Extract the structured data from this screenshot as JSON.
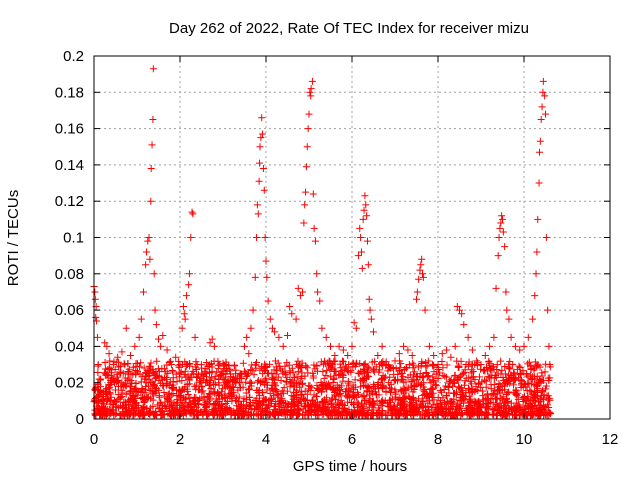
{
  "chart_data": {
    "type": "scatter",
    "title": "Day 262 of 2022, Rate Of TEC Index for receiver mizu",
    "xlabel": "GPS time / hours",
    "ylabel": "ROTI / TECUs",
    "xlim": [
      0,
      12
    ],
    "ylim": [
      0,
      0.2
    ],
    "xticks": [
      "0",
      "2",
      "4",
      "6",
      "8",
      "10",
      "12"
    ],
    "yticks": [
      "0",
      "0.02",
      "0.04",
      "0.06",
      "0.08",
      "0.1",
      "0.12",
      "0.14",
      "0.16",
      "0.18",
      "0.2"
    ],
    "grid": true,
    "marker": "+",
    "color": "#ff0000",
    "series": [
      {
        "points": [
          [
            0.0,
            0.073
          ],
          [
            0.02,
            0.07
          ],
          [
            0.03,
            0.066
          ],
          [
            0.05,
            0.062
          ],
          [
            0.04,
            0.056
          ],
          [
            0.06,
            0.054
          ],
          [
            0.08,
            0.045
          ],
          [
            0.1,
            0.03
          ],
          [
            0.12,
            0.022
          ],
          [
            0.15,
            0.018
          ],
          [
            0.25,
            0.042
          ],
          [
            0.3,
            0.04
          ],
          [
            0.35,
            0.036
          ],
          [
            0.45,
            0.03
          ],
          [
            0.55,
            0.034
          ],
          [
            0.65,
            0.037
          ],
          [
            0.75,
            0.05
          ],
          [
            0.85,
            0.035
          ],
          [
            0.95,
            0.04
          ],
          [
            1.05,
            0.045
          ],
          [
            1.1,
            0.055
          ],
          [
            1.15,
            0.07
          ],
          [
            1.2,
            0.085
          ],
          [
            1.22,
            0.092
          ],
          [
            1.25,
            0.098
          ],
          [
            1.28,
            0.1
          ],
          [
            1.3,
            0.088
          ],
          [
            1.32,
            0.12
          ],
          [
            1.33,
            0.138
          ],
          [
            1.35,
            0.151
          ],
          [
            1.37,
            0.165
          ],
          [
            1.38,
            0.193
          ],
          [
            1.4,
            0.08
          ],
          [
            1.42,
            0.06
          ],
          [
            1.45,
            0.052
          ],
          [
            1.5,
            0.044
          ],
          [
            1.55,
            0.04
          ],
          [
            1.6,
            0.046
          ],
          [
            1.7,
            0.038
          ],
          [
            1.8,
            0.03
          ],
          [
            1.9,
            0.034
          ],
          [
            2.0,
            0.03
          ],
          [
            2.05,
            0.05
          ],
          [
            2.08,
            0.062
          ],
          [
            2.1,
            0.058
          ],
          [
            2.12,
            0.055
          ],
          [
            2.15,
            0.068
          ],
          [
            2.2,
            0.074
          ],
          [
            2.22,
            0.08
          ],
          [
            2.25,
            0.1
          ],
          [
            2.28,
            0.114
          ],
          [
            2.3,
            0.113
          ],
          [
            2.35,
            0.045
          ],
          [
            2.4,
            0.03
          ],
          [
            2.5,
            0.028
          ],
          [
            2.6,
            0.025
          ],
          [
            2.7,
            0.042
          ],
          [
            2.75,
            0.044
          ],
          [
            2.8,
            0.04
          ],
          [
            2.9,
            0.02
          ],
          [
            3.0,
            0.022
          ],
          [
            3.1,
            0.018
          ],
          [
            3.2,
            0.016
          ],
          [
            3.3,
            0.02
          ],
          [
            3.4,
            0.025
          ],
          [
            3.5,
            0.04
          ],
          [
            3.55,
            0.045
          ],
          [
            3.6,
            0.036
          ],
          [
            3.65,
            0.05
          ],
          [
            3.7,
            0.06
          ],
          [
            3.75,
            0.078
          ],
          [
            3.78,
            0.1
          ],
          [
            3.8,
            0.118
          ],
          [
            3.82,
            0.113
          ],
          [
            3.84,
            0.131
          ],
          [
            3.85,
            0.141
          ],
          [
            3.86,
            0.15
          ],
          [
            3.88,
            0.155
          ],
          [
            3.9,
            0.166
          ],
          [
            3.92,
            0.157
          ],
          [
            3.94,
            0.138
          ],
          [
            3.96,
            0.126
          ],
          [
            3.98,
            0.1
          ],
          [
            4.0,
            0.087
          ],
          [
            4.02,
            0.078
          ],
          [
            4.05,
            0.065
          ],
          [
            4.1,
            0.055
          ],
          [
            4.15,
            0.05
          ],
          [
            4.2,
            0.048
          ],
          [
            4.3,
            0.045
          ],
          [
            4.4,
            0.04
          ],
          [
            4.5,
            0.046
          ],
          [
            4.55,
            0.062
          ],
          [
            4.6,
            0.058
          ],
          [
            4.7,
            0.055
          ],
          [
            4.75,
            0.072
          ],
          [
            4.8,
            0.068
          ],
          [
            4.85,
            0.07
          ],
          [
            4.88,
            0.108
          ],
          [
            4.9,
            0.118
          ],
          [
            4.92,
            0.125
          ],
          [
            4.94,
            0.139
          ],
          [
            4.96,
            0.15
          ],
          [
            4.98,
            0.16
          ],
          [
            5.0,
            0.168
          ],
          [
            5.02,
            0.18
          ],
          [
            5.04,
            0.178
          ],
          [
            5.05,
            0.182
          ],
          [
            5.08,
            0.186
          ],
          [
            5.1,
            0.124
          ],
          [
            5.12,
            0.105
          ],
          [
            5.15,
            0.098
          ],
          [
            5.18,
            0.08
          ],
          [
            5.2,
            0.07
          ],
          [
            5.25,
            0.065
          ],
          [
            5.3,
            0.05
          ],
          [
            5.4,
            0.045
          ],
          [
            5.5,
            0.04
          ],
          [
            5.6,
            0.035
          ],
          [
            5.7,
            0.04
          ],
          [
            5.8,
            0.038
          ],
          [
            5.9,
            0.035
          ],
          [
            6.0,
            0.04
          ],
          [
            6.05,
            0.053
          ],
          [
            6.1,
            0.05
          ],
          [
            6.15,
            0.09
          ],
          [
            6.18,
            0.105
          ],
          [
            6.2,
            0.1
          ],
          [
            6.22,
            0.092
          ],
          [
            6.24,
            0.083
          ],
          [
            6.26,
            0.11
          ],
          [
            6.28,
            0.115
          ],
          [
            6.3,
            0.123
          ],
          [
            6.32,
            0.118
          ],
          [
            6.34,
            0.112
          ],
          [
            6.36,
            0.098
          ],
          [
            6.38,
            0.085
          ],
          [
            6.4,
            0.066
          ],
          [
            6.42,
            0.06
          ],
          [
            6.45,
            0.055
          ],
          [
            6.5,
            0.048
          ],
          [
            6.6,
            0.035
          ],
          [
            6.7,
            0.04
          ],
          [
            6.8,
            0.03
          ],
          [
            6.9,
            0.028
          ],
          [
            7.0,
            0.032
          ],
          [
            7.1,
            0.036
          ],
          [
            7.2,
            0.04
          ],
          [
            7.3,
            0.038
          ],
          [
            7.4,
            0.035
          ],
          [
            7.5,
            0.066
          ],
          [
            7.52,
            0.07
          ],
          [
            7.55,
            0.077
          ],
          [
            7.58,
            0.082
          ],
          [
            7.6,
            0.085
          ],
          [
            7.62,
            0.088
          ],
          [
            7.64,
            0.08
          ],
          [
            7.66,
            0.078
          ],
          [
            7.7,
            0.06
          ],
          [
            7.8,
            0.04
          ],
          [
            7.9,
            0.035
          ],
          [
            8.0,
            0.03
          ],
          [
            8.1,
            0.036
          ],
          [
            8.2,
            0.038
          ],
          [
            8.3,
            0.034
          ],
          [
            8.4,
            0.04
          ],
          [
            8.45,
            0.062
          ],
          [
            8.5,
            0.06
          ],
          [
            8.55,
            0.058
          ],
          [
            8.6,
            0.052
          ],
          [
            8.7,
            0.045
          ],
          [
            8.8,
            0.038
          ],
          [
            8.9,
            0.032
          ],
          [
            9.0,
            0.03
          ],
          [
            9.1,
            0.035
          ],
          [
            9.2,
            0.04
          ],
          [
            9.3,
            0.045
          ],
          [
            9.35,
            0.072
          ],
          [
            9.4,
            0.09
          ],
          [
            9.42,
            0.1
          ],
          [
            9.44,
            0.105
          ],
          [
            9.46,
            0.108
          ],
          [
            9.48,
            0.112
          ],
          [
            9.5,
            0.11
          ],
          [
            9.52,
            0.103
          ],
          [
            9.55,
            0.095
          ],
          [
            9.58,
            0.07
          ],
          [
            9.6,
            0.06
          ],
          [
            9.65,
            0.055
          ],
          [
            9.7,
            0.045
          ],
          [
            9.8,
            0.04
          ],
          [
            9.9,
            0.038
          ],
          [
            10.0,
            0.04
          ],
          [
            10.1,
            0.045
          ],
          [
            10.2,
            0.055
          ],
          [
            10.25,
            0.068
          ],
          [
            10.28,
            0.08
          ],
          [
            10.3,
            0.092
          ],
          [
            10.32,
            0.11
          ],
          [
            10.35,
            0.13
          ],
          [
            10.36,
            0.147
          ],
          [
            10.38,
            0.153
          ],
          [
            10.4,
            0.165
          ],
          [
            10.42,
            0.172
          ],
          [
            10.44,
            0.18
          ],
          [
            10.45,
            0.186
          ],
          [
            10.48,
            0.178
          ],
          [
            10.5,
            0.168
          ],
          [
            10.52,
            0.1
          ],
          [
            10.55,
            0.06
          ],
          [
            10.58,
            0.04
          ],
          [
            10.6,
            0.03
          ]
        ],
        "noise_band": {
          "x_range": [
            0.0,
            10.62
          ],
          "y_range": [
            0.002,
            0.032
          ],
          "description": "dense cluster of points near baseline"
        }
      }
    ]
  }
}
